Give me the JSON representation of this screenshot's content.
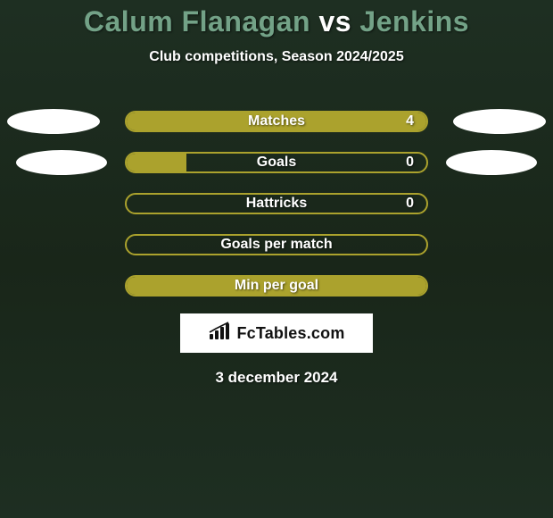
{
  "title": {
    "player1": "Calum Flanagan",
    "vs": "vs",
    "player2": "Jenkins",
    "color_player": "#73a287",
    "color_vs": "#ffffff",
    "fontsize": 32
  },
  "subtitle": "Club competitions, Season 2024/2025",
  "chart": {
    "type": "horizontal-bar",
    "bar_track_width": 340,
    "bar_track_height": 24,
    "bar_border_color": "#aba22d",
    "bar_fill_color": "#aba22d",
    "bar_border_radius": 14,
    "label_color": "#ffffff",
    "label_fontsize": 16,
    "rows": [
      {
        "label": "Matches",
        "value": "4",
        "fill": 1.0,
        "show_value": true,
        "ellipses": "strong"
      },
      {
        "label": "Goals",
        "value": "0",
        "fill": 0.2,
        "show_value": true,
        "ellipses": "soft"
      },
      {
        "label": "Hattricks",
        "value": "0",
        "fill": 0.0,
        "show_value": true,
        "ellipses": "none"
      },
      {
        "label": "Goals per match",
        "value": "",
        "fill": 0.0,
        "show_value": false,
        "ellipses": "none"
      },
      {
        "label": "Min per goal",
        "value": "",
        "fill": 1.0,
        "show_value": false,
        "ellipses": "none"
      }
    ],
    "ellipses": {
      "fill": "#ffffff",
      "width": 104,
      "height": 28
    }
  },
  "badge": {
    "text": "FcTables.com",
    "bg": "#ffffff",
    "text_color": "#111111",
    "fontsize": 18
  },
  "date": "3 december 2024",
  "colors": {
    "background": "#1d2c20",
    "text": "#ffffff"
  }
}
